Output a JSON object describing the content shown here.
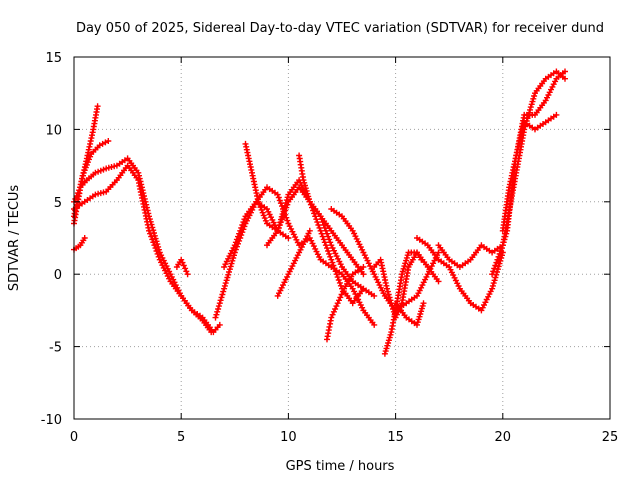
{
  "chart_data": {
    "type": "scatter",
    "title": "Day 050 of 2025, Sidereal Day-to-day VTEC variation (SDTVAR) for receiver dund",
    "xlabel": "GPS time / hours",
    "ylabel": "SDTVAR / TECUs",
    "xlim": [
      0,
      25
    ],
    "ylim": [
      -10,
      15
    ],
    "xticks": [
      0,
      5,
      10,
      15,
      20,
      25
    ],
    "yticks": [
      -10,
      -5,
      0,
      5,
      10,
      15
    ],
    "xtick_labels": [
      "0",
      "5",
      "10",
      "15",
      "20",
      "25"
    ],
    "ytick_labels": [
      "-10",
      "-5",
      "0",
      "5",
      "10",
      "15"
    ],
    "grid": true,
    "marker": "plus",
    "color": "#ff0000",
    "series": [
      {
        "name": "track-1",
        "x": [
          0.0,
          0.3,
          0.6,
          0.9,
          1.1
        ],
        "y": [
          3.5,
          6.0,
          8.0,
          10.0,
          11.6
        ]
      },
      {
        "name": "track-2",
        "x": [
          0.0,
          0.4,
          0.8,
          1.2,
          1.6
        ],
        "y": [
          4.0,
          6.8,
          8.3,
          8.9,
          9.2
        ]
      },
      {
        "name": "track-3",
        "x": [
          0.0,
          0.3,
          0.6,
          1.0,
          1.5,
          2.0,
          2.5,
          3.0,
          3.5,
          4.0,
          4.5,
          5.0,
          5.5,
          6.0,
          6.5,
          6.8
        ],
        "y": [
          5.0,
          6.0,
          6.5,
          7.0,
          7.3,
          7.5,
          8.0,
          7.0,
          4.0,
          1.5,
          0.0,
          -1.5,
          -2.5,
          -3.0,
          -4.0,
          -3.5
        ]
      },
      {
        "name": "track-4",
        "x": [
          0.0,
          0.5,
          1.0,
          1.5,
          2.0,
          2.5,
          3.0,
          3.5,
          4.0,
          4.5,
          5.0,
          5.5,
          6.0,
          6.4
        ],
        "y": [
          4.5,
          5.0,
          5.5,
          5.7,
          6.5,
          7.5,
          6.5,
          3.0,
          1.0,
          -0.5,
          -1.5,
          -2.5,
          -3.2,
          -4.0
        ]
      },
      {
        "name": "track-5",
        "x": [
          0.0,
          0.3,
          0.5
        ],
        "y": [
          1.7,
          2.0,
          2.5
        ]
      },
      {
        "name": "track-6",
        "x": [
          4.8,
          5.0,
          5.3
        ],
        "y": [
          0.5,
          1.0,
          0.0
        ]
      },
      {
        "name": "track-7",
        "x": [
          6.6,
          7.0,
          7.5,
          8.0,
          8.5,
          9.0,
          9.5,
          10.0,
          10.5,
          11.0,
          11.5,
          12.0,
          12.5,
          13.0,
          13.5,
          14.0
        ],
        "y": [
          -3.0,
          -1.0,
          1.5,
          3.5,
          5.0,
          6.0,
          5.5,
          3.5,
          2.0,
          2.5,
          1.0,
          0.5,
          0.0,
          -1.0,
          -2.5,
          -3.5
        ]
      },
      {
        "name": "track-8",
        "x": [
          7.0,
          7.5,
          8.0,
          8.5,
          9.0,
          9.5,
          10.0,
          10.5,
          11.0,
          11.5,
          12.0,
          12.5,
          13.0,
          13.5,
          14.0
        ],
        "y": [
          0.5,
          2.0,
          4.0,
          5.0,
          4.5,
          3.0,
          5.5,
          6.5,
          5.0,
          4.0,
          2.0,
          0.5,
          -0.5,
          -1.0,
          -1.5
        ]
      },
      {
        "name": "track-9",
        "x": [
          8.0,
          8.3,
          8.6,
          9.0,
          9.5,
          10.0
        ],
        "y": [
          9.0,
          7.0,
          5.0,
          3.5,
          3.0,
          2.5
        ]
      },
      {
        "name": "track-10",
        "x": [
          9.0,
          9.5,
          10.0,
          10.5,
          11.0,
          11.5,
          12.0,
          12.5,
          13.0,
          13.5
        ],
        "y": [
          2.0,
          3.0,
          5.0,
          6.0,
          5.0,
          3.0,
          1.0,
          -1.0,
          -2.0,
          -1.0
        ]
      },
      {
        "name": "track-11",
        "x": [
          9.5,
          10.0,
          10.5,
          11.0
        ],
        "y": [
          -1.5,
          0.0,
          1.5,
          3.0
        ]
      },
      {
        "name": "track-12",
        "x": [
          10.5,
          10.7,
          11.0,
          11.5,
          12.0,
          12.5,
          13.0,
          13.5
        ],
        "y": [
          8.2,
          6.5,
          5.0,
          4.0,
          3.0,
          2.0,
          1.0,
          0.0
        ]
      },
      {
        "name": "track-13",
        "x": [
          11.8,
          12.0,
          12.3,
          12.6,
          13.0,
          13.5
        ],
        "y": [
          -4.5,
          -3.0,
          -2.0,
          -1.0,
          0.0,
          0.5
        ]
      },
      {
        "name": "track-14",
        "x": [
          12.0,
          12.5,
          13.0,
          13.5,
          14.0,
          14.5,
          15.0,
          15.5,
          16.0,
          16.5,
          17.0
        ],
        "y": [
          4.5,
          4.0,
          3.0,
          1.5,
          0.0,
          -1.5,
          -2.5,
          -2.0,
          -1.5,
          0.0,
          1.5
        ]
      },
      {
        "name": "track-15",
        "x": [
          14.0,
          14.3,
          14.6,
          15.0,
          15.3,
          15.6,
          16.0,
          16.2
        ],
        "y": [
          0.5,
          1.0,
          -1.0,
          -3.0,
          -2.0,
          0.5,
          1.5,
          1.0
        ]
      },
      {
        "name": "track-16",
        "x": [
          14.5,
          14.8,
          15.0,
          15.3,
          15.6,
          16.0,
          16.5,
          17.0
        ],
        "y": [
          -5.5,
          -4.0,
          -2.5,
          0.0,
          1.5,
          1.5,
          0.5,
          -0.5
        ]
      },
      {
        "name": "track-17",
        "x": [
          15.0,
          15.5,
          16.0,
          16.3
        ],
        "y": [
          -2.0,
          -3.0,
          -3.5,
          -2.0
        ]
      },
      {
        "name": "track-18",
        "x": [
          16.0,
          16.5,
          17.0,
          17.5,
          18.0,
          18.5,
          19.0,
          19.5,
          20.0
        ],
        "y": [
          2.5,
          2.0,
          1.0,
          0.5,
          -1.0,
          -2.0,
          -2.5,
          -1.0,
          1.5
        ]
      },
      {
        "name": "track-19",
        "x": [
          17.0,
          17.5,
          18.0,
          18.5,
          19.0,
          19.5,
          20.0
        ],
        "y": [
          2.0,
          1.0,
          0.5,
          1.0,
          2.0,
          1.5,
          2.0
        ]
      },
      {
        "name": "track-20",
        "x": [
          19.5,
          20.0,
          20.5,
          21.0,
          21.5,
          22.0,
          22.5,
          22.9
        ],
        "y": [
          0.0,
          2.0,
          6.0,
          10.0,
          12.5,
          13.5,
          14.0,
          13.5
        ]
      },
      {
        "name": "track-21",
        "x": [
          19.8,
          20.2,
          20.6,
          21.0,
          21.5,
          22.0,
          22.5,
          22.9
        ],
        "y": [
          1.0,
          3.0,
          8.0,
          11.0,
          11.0,
          12.0,
          13.5,
          14.0
        ]
      },
      {
        "name": "track-22",
        "x": [
          20.0,
          20.3,
          20.6,
          21.0,
          21.5,
          22.0,
          22.5
        ],
        "y": [
          3.0,
          6.0,
          8.0,
          10.5,
          10.0,
          10.5,
          11.0
        ]
      }
    ]
  }
}
